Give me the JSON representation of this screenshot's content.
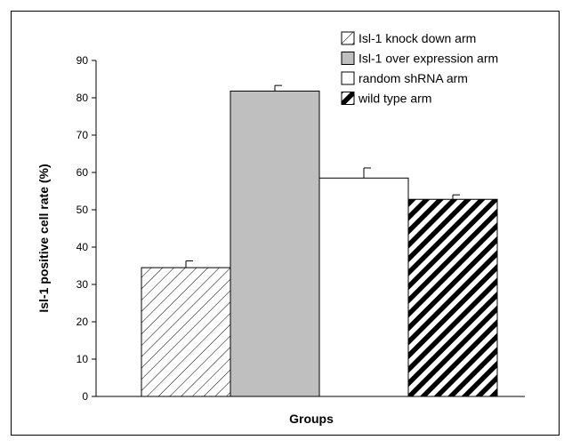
{
  "chart_data": {
    "type": "bar",
    "xlabel": "Groups",
    "ylabel": "Isl-1 positive cell rate (%)",
    "ylim": [
      0,
      90
    ],
    "yticks": [
      0,
      10,
      20,
      30,
      40,
      50,
      60,
      70,
      80,
      90
    ],
    "legend_position": "top-right",
    "series": [
      {
        "name": "Isl-1 knock down arm",
        "value": 34.5,
        "error": 1.8,
        "fill": "hatch-thin",
        "color": "#000000"
      },
      {
        "name": "Isl-1 over expression arm",
        "value": 81.8,
        "error": 1.5,
        "fill": "solid",
        "color": "#bfbfbf"
      },
      {
        "name": "random shRNA arm",
        "value": 58.5,
        "error": 2.7,
        "fill": "solid",
        "color": "#ffffff"
      },
      {
        "name": "wild type arm",
        "value": 52.8,
        "error": 1.2,
        "fill": "hatch-thick",
        "color": "#000000"
      }
    ]
  }
}
